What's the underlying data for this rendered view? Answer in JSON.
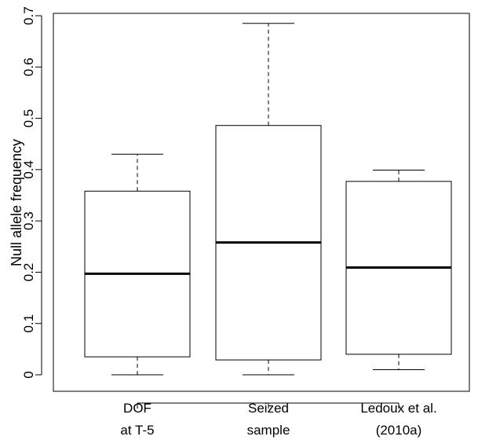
{
  "chart_data": {
    "type": "box",
    "title": "",
    "xlabel": "",
    "ylabel": "Null allele frequency",
    "ylim": [
      0,
      0.7
    ],
    "yticks": [
      "0",
      "0.1",
      "0.2",
      "0.3",
      "0.4",
      "0.5",
      "0.6",
      "0.7"
    ],
    "categories": [
      {
        "line1": "DOF",
        "line2": "at T-5"
      },
      {
        "line1": "Seized",
        "line2": "sample"
      },
      {
        "line1": "Ledoux et al.",
        "line2": "(2010a)"
      }
    ],
    "boxes": [
      {
        "min": 0.0,
        "q1": 0.035,
        "median": 0.197,
        "q3": 0.358,
        "max": 0.43
      },
      {
        "min": 0.0,
        "q1": 0.029,
        "median": 0.258,
        "q3": 0.486,
        "max": 0.685
      },
      {
        "min": 0.01,
        "q1": 0.04,
        "median": 0.209,
        "q3": 0.377,
        "max": 0.399
      }
    ],
    "grid": false,
    "legend": "none"
  }
}
